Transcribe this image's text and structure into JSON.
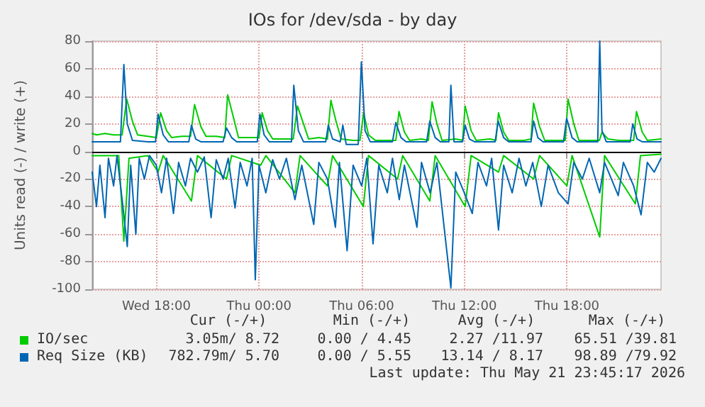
{
  "chart_data": {
    "type": "line",
    "title": "IOs for /dev/sda - by day",
    "ylabel": "Units read (-) / write (+)",
    "xlim": [
      "2026-05-20T14:15",
      "2026-05-21T23:30"
    ],
    "xticks": [
      {
        "value": "2026-05-20T18:00",
        "label": "Wed 18:00"
      },
      {
        "value": "2026-05-21T00:00",
        "label": "Thu 00:00"
      },
      {
        "value": "2026-05-21T06:00",
        "label": "Thu 06:00"
      },
      {
        "value": "2026-05-21T12:00",
        "label": "Thu 12:00"
      },
      {
        "value": "2026-05-21T18:00",
        "label": "Thu 18:00"
      }
    ],
    "ylim": [
      -100,
      80
    ],
    "yticks": [
      -100,
      -80,
      -60,
      -40,
      -20,
      0,
      20,
      40,
      60,
      80
    ],
    "grid": true,
    "legend": "bottom left",
    "marker": "none",
    "line_style": "solid",
    "ref_lines": [
      {
        "axis": "y",
        "value": 0,
        "color": "#000000"
      }
    ],
    "annotations": [
      "Cur (-/+)",
      "Min (-/+)",
      "Avg (-/+)",
      "Max (-/+)",
      "3.05m/ 8.72",
      "0.00 / 4.45",
      "2.27 /11.97",
      "65.51 /39.81",
      "782.79m/ 5.70",
      "0.00 / 5.55",
      "13.14 / 8.17",
      "98.89 /79.92",
      "Last update: Thu May 21 23:45:17 2026"
    ],
    "series": [
      {
        "name": "IO/sec",
        "color": "#00cc00",
        "x": [
          "2026-05-20T14:15",
          "2026-05-20T14:30",
          "2026-05-20T15:00",
          "2026-05-20T15:30",
          "2026-05-20T16:00",
          "2026-05-20T16:16",
          "2026-05-20T16:36",
          "2026-05-20T16:54",
          "2026-05-20T17:30",
          "2026-05-20T18:00",
          "2026-05-20T18:15",
          "2026-05-20T18:36",
          "2026-05-20T18:54",
          "2026-05-20T19:30",
          "2026-05-20T20:00",
          "2026-05-20T20:14",
          "2026-05-20T20:36",
          "2026-05-20T20:54",
          "2026-05-20T21:30",
          "2026-05-20T22:00",
          "2026-05-20T22:10",
          "2026-05-20T22:30",
          "2026-05-20T22:48",
          "2026-05-20T23:30",
          "2026-05-21T00:00",
          "2026-05-21T00:11",
          "2026-05-21T00:30",
          "2026-05-21T00:48",
          "2026-05-21T01:30",
          "2026-05-21T02:00",
          "2026-05-21T02:15",
          "2026-05-21T02:36",
          "2026-05-21T02:54",
          "2026-05-21T03:30",
          "2026-05-21T04:00",
          "2026-05-21T04:12",
          "2026-05-21T04:30",
          "2026-05-21T04:48",
          "2026-05-21T05:30",
          "2026-05-21T05:54",
          "2026-05-21T06:07",
          "2026-05-21T06:24",
          "2026-05-21T06:48",
          "2026-05-21T07:30",
          "2026-05-21T08:00",
          "2026-05-21T08:11",
          "2026-05-21T08:30",
          "2026-05-21T08:48",
          "2026-05-21T09:30",
          "2026-05-21T09:54",
          "2026-05-21T10:07",
          "2026-05-21T10:24",
          "2026-05-21T10:42",
          "2026-05-21T11:30",
          "2026-05-21T11:54",
          "2026-05-21T12:03",
          "2026-05-21T12:24",
          "2026-05-21T12:42",
          "2026-05-21T13:30",
          "2026-05-21T13:51",
          "2026-05-21T14:00",
          "2026-05-21T14:18",
          "2026-05-21T14:36",
          "2026-05-21T15:30",
          "2026-05-21T15:54",
          "2026-05-21T16:03",
          "2026-05-21T16:24",
          "2026-05-21T16:42",
          "2026-05-21T17:30",
          "2026-05-21T17:54",
          "2026-05-21T18:04",
          "2026-05-21T18:24",
          "2026-05-21T18:42",
          "2026-05-21T19:30",
          "2026-05-21T19:54",
          "2026-05-21T20:03",
          "2026-05-21T20:24",
          "2026-05-21T21:00",
          "2026-05-21T21:54",
          "2026-05-21T22:04",
          "2026-05-21T22:24",
          "2026-05-21T22:42",
          "2026-05-21T23:30"
        ],
        "values": [
          13,
          12,
          13,
          12,
          12,
          38,
          22,
          12,
          11,
          10,
          28,
          15,
          10,
          11,
          11,
          34,
          18,
          11,
          11,
          10,
          41,
          25,
          10,
          10,
          10,
          28,
          15,
          9,
          9,
          9,
          33,
          20,
          9,
          10,
          9,
          37,
          22,
          9,
          8,
          8,
          28,
          12,
          8,
          8,
          8,
          29,
          14,
          8,
          9,
          8,
          36,
          20,
          8,
          9,
          8,
          33,
          15,
          8,
          9,
          8,
          28,
          14,
          8,
          8,
          9,
          35,
          18,
          8,
          8,
          8,
          38,
          20,
          8,
          8,
          8,
          14,
          9,
          8,
          8,
          29,
          14,
          8,
          9
        ]
      },
      {
        "color": "#00cc00",
        "x": [
          "2026-05-20T14:15",
          "2026-05-20T15:48",
          "2026-05-20T16:06",
          "2026-05-20T16:24",
          "2026-05-20T17:30",
          "2026-05-20T18:06",
          "2026-05-20T18:24",
          "2026-05-20T20:03",
          "2026-05-20T20:24",
          "2026-05-20T22:06",
          "2026-05-20T22:24",
          "2026-05-21T00:06",
          "2026-05-21T00:24",
          "2026-05-21T02:06",
          "2026-05-21T02:24",
          "2026-05-21T04:00",
          "2026-05-21T04:18",
          "2026-05-21T06:06",
          "2026-05-21T06:24",
          "2026-05-21T08:06",
          "2026-05-21T08:24",
          "2026-05-21T09:59",
          "2026-05-21T10:18",
          "2026-05-21T12:03",
          "2026-05-21T12:24",
          "2026-05-21T14:00",
          "2026-05-21T14:18",
          "2026-05-21T16:03",
          "2026-05-21T16:24",
          "2026-05-21T18:00",
          "2026-05-21T18:18",
          "2026-05-21T19:55",
          "2026-05-21T20:12",
          "2026-05-21T22:00",
          "2026-05-21T22:18",
          "2026-05-21T23:30"
        ],
        "values": [
          -3,
          -3,
          -65,
          -5,
          -3,
          -15,
          -3,
          -36,
          -3,
          -20,
          -3,
          -10,
          -3,
          -30,
          -3,
          -25,
          -3,
          -40,
          -3,
          -20,
          -3,
          -36,
          -3,
          -40,
          -3,
          -15,
          -3,
          -20,
          -3,
          -25,
          -3,
          -62,
          -3,
          -38,
          -3,
          -2
        ]
      },
      {
        "name": "Req Size (KB)",
        "color": "#0066b3",
        "x": [
          "2026-05-20T14:15",
          "2026-05-20T15:54",
          "2026-05-20T16:06",
          "2026-05-20T16:18",
          "2026-05-20T16:36",
          "2026-05-20T17:30",
          "2026-05-20T17:57",
          "2026-05-20T18:06",
          "2026-05-20T18:24",
          "2026-05-20T18:42",
          "2026-05-20T19:54",
          "2026-05-20T20:03",
          "2026-05-20T20:18",
          "2026-05-20T20:36",
          "2026-05-20T21:54",
          "2026-05-20T22:06",
          "2026-05-20T22:24",
          "2026-05-20T22:42",
          "2026-05-20T23:54",
          "2026-05-21T00:03",
          "2026-05-21T00:18",
          "2026-05-21T00:36",
          "2026-05-21T01:54",
          "2026-05-21T02:02",
          "2026-05-21T02:18",
          "2026-05-21T02:36",
          "2026-05-21T03:54",
          "2026-05-21T04:03",
          "2026-05-21T04:18",
          "2026-05-21T04:45",
          "2026-05-21T04:54",
          "2026-05-21T05:06",
          "2026-05-21T05:48",
          "2026-05-21T05:59",
          "2026-05-21T06:12",
          "2026-05-21T06:30",
          "2026-05-21T07:48",
          "2026-05-21T08:00",
          "2026-05-21T08:18",
          "2026-05-21T08:36",
          "2026-05-21T09:48",
          "2026-05-21T09:59",
          "2026-05-21T10:18",
          "2026-05-21T10:36",
          "2026-05-21T11:06",
          "2026-05-21T11:13",
          "2026-05-21T11:24",
          "2026-05-21T11:54",
          "2026-05-21T12:03",
          "2026-05-21T12:18",
          "2026-05-21T12:36",
          "2026-05-21T13:48",
          "2026-05-21T13:59",
          "2026-05-21T14:18",
          "2026-05-21T14:36",
          "2026-05-21T15:54",
          "2026-05-21T16:03",
          "2026-05-21T16:18",
          "2026-05-21T16:36",
          "2026-05-21T17:48",
          "2026-05-21T17:59",
          "2026-05-21T18:18",
          "2026-05-21T18:36",
          "2026-05-21T19:48",
          "2026-05-21T19:55",
          "2026-05-21T20:03",
          "2026-05-21T20:18",
          "2026-05-21T21:42",
          "2026-05-21T21:51",
          "2026-05-21T22:06",
          "2026-05-21T22:24",
          "2026-05-21T23:30"
        ],
        "values": [
          7,
          7,
          63,
          20,
          8,
          7,
          7,
          27,
          12,
          7,
          7,
          19,
          9,
          7,
          7,
          17,
          10,
          7,
          7,
          27,
          12,
          7,
          7,
          48,
          15,
          7,
          7,
          19,
          9,
          7,
          19,
          5,
          5,
          65,
          15,
          7,
          7,
          21,
          10,
          7,
          7,
          22,
          10,
          7,
          7,
          48,
          7,
          7,
          19,
          9,
          7,
          7,
          22,
          10,
          7,
          7,
          22,
          10,
          7,
          7,
          24,
          10,
          7,
          7,
          80,
          15,
          7,
          7,
          20,
          9,
          7,
          7
        ]
      },
      {
        "color": "#0066b3",
        "x": [
          "2026-05-20T14:15",
          "2026-05-20T14:30",
          "2026-05-20T14:42",
          "2026-05-20T15:00",
          "2026-05-20T15:12",
          "2026-05-20T15:30",
          "2026-05-20T15:42",
          "2026-05-20T16:00",
          "2026-05-20T16:18",
          "2026-05-20T16:30",
          "2026-05-20T16:48",
          "2026-05-20T17:00",
          "2026-05-20T17:18",
          "2026-05-20T17:36",
          "2026-05-20T18:00",
          "2026-05-20T18:18",
          "2026-05-20T18:36",
          "2026-05-20T19:00",
          "2026-05-20T19:18",
          "2026-05-20T19:42",
          "2026-05-20T20:00",
          "2026-05-20T20:24",
          "2026-05-20T20:48",
          "2026-05-20T21:12",
          "2026-05-20T21:30",
          "2026-05-20T21:54",
          "2026-05-20T22:12",
          "2026-05-20T22:36",
          "2026-05-20T22:54",
          "2026-05-20T23:18",
          "2026-05-20T23:36",
          "2026-05-20T23:47",
          "2026-05-21T00:00",
          "2026-05-21T00:24",
          "2026-05-21T00:48",
          "2026-05-21T01:12",
          "2026-05-21T01:36",
          "2026-05-21T02:06",
          "2026-05-21T02:30",
          "2026-05-21T03:12",
          "2026-05-21T03:30",
          "2026-05-21T04:00",
          "2026-05-21T04:28",
          "2026-05-21T04:42",
          "2026-05-21T05:09",
          "2026-05-21T05:30",
          "2026-05-21T06:00",
          "2026-05-21T06:18",
          "2026-05-21T06:40",
          "2026-05-21T07:00",
          "2026-05-21T07:30",
          "2026-05-21T07:48",
          "2026-05-21T08:12",
          "2026-05-21T08:30",
          "2026-05-21T09:14",
          "2026-05-21T09:30",
          "2026-05-21T10:00",
          "2026-05-21T10:24",
          "2026-05-21T11:13",
          "2026-05-21T11:30",
          "2026-05-21T12:00",
          "2026-05-21T12:28",
          "2026-05-21T12:48",
          "2026-05-21T13:18",
          "2026-05-21T13:36",
          "2026-05-21T14:00",
          "2026-05-21T14:18",
          "2026-05-21T14:48",
          "2026-05-21T15:12",
          "2026-05-21T15:36",
          "2026-05-21T16:00",
          "2026-05-21T16:30",
          "2026-05-21T16:54",
          "2026-05-21T17:30",
          "2026-05-21T18:04",
          "2026-05-21T18:24",
          "2026-05-21T18:54",
          "2026-05-21T19:18",
          "2026-05-21T19:55",
          "2026-05-21T20:12",
          "2026-05-21T21:00",
          "2026-05-21T21:18",
          "2026-05-21T21:54",
          "2026-05-21T22:20",
          "2026-05-21T22:42",
          "2026-05-21T23:06",
          "2026-05-21T23:30"
        ],
        "values": [
          -15,
          -40,
          -10,
          -48,
          -5,
          -25,
          -3,
          -35,
          -69,
          -10,
          -60,
          -5,
          -20,
          -3,
          -10,
          -30,
          -5,
          -45,
          -8,
          -25,
          -5,
          -15,
          -4,
          -48,
          -6,
          -20,
          -5,
          -41,
          -8,
          -25,
          -5,
          -93,
          -10,
          -30,
          -6,
          -20,
          -5,
          -35,
          -10,
          -53,
          -8,
          -20,
          -55,
          -8,
          -72,
          -10,
          -25,
          -5,
          -67,
          -10,
          -30,
          -5,
          -35,
          -10,
          -55,
          -8,
          -30,
          -8,
          -99,
          -15,
          -30,
          -45,
          -8,
          -25,
          -5,
          -57,
          -10,
          -30,
          -5,
          -25,
          -8,
          -40,
          -10,
          -30,
          -38,
          -8,
          -20,
          -5,
          -30,
          -8,
          -32,
          -8,
          -25,
          -46,
          -8,
          -15,
          -5
        ]
      }
    ]
  }
}
